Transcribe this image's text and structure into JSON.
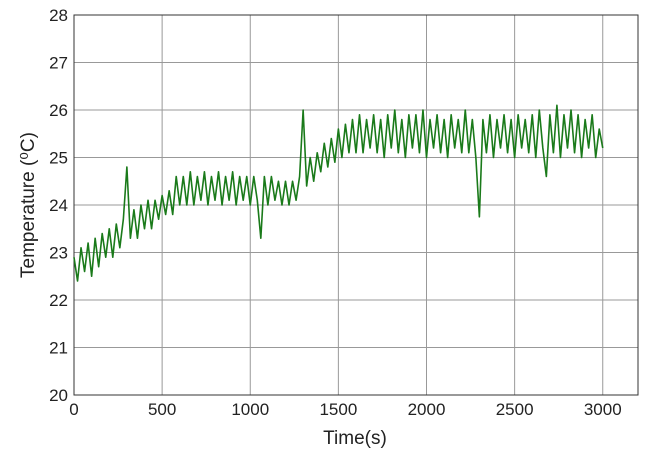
{
  "chart_data": {
    "type": "line",
    "xlabel": "Time(s)",
    "ylabel": "Temperature (⁰C)",
    "xlim": [
      0,
      3200
    ],
    "ylim": [
      20,
      28
    ],
    "xticks": [
      0,
      500,
      1000,
      1500,
      2000,
      2500,
      3000
    ],
    "yticks": [
      20,
      21,
      22,
      23,
      24,
      25,
      26,
      27,
      28
    ],
    "grid": true,
    "x": [
      0,
      20,
      40,
      60,
      80,
      100,
      120,
      140,
      160,
      180,
      200,
      220,
      240,
      260,
      280,
      300,
      320,
      340,
      360,
      380,
      400,
      420,
      440,
      460,
      480,
      500,
      520,
      540,
      560,
      580,
      600,
      620,
      640,
      660,
      680,
      700,
      720,
      740,
      760,
      780,
      800,
      820,
      840,
      860,
      880,
      900,
      920,
      940,
      960,
      980,
      1000,
      1020,
      1040,
      1060,
      1080,
      1100,
      1120,
      1140,
      1160,
      1180,
      1200,
      1220,
      1240,
      1260,
      1280,
      1300,
      1320,
      1340,
      1360,
      1380,
      1400,
      1420,
      1440,
      1460,
      1480,
      1500,
      1520,
      1540,
      1560,
      1580,
      1600,
      1620,
      1640,
      1660,
      1680,
      1700,
      1720,
      1740,
      1760,
      1780,
      1800,
      1820,
      1840,
      1860,
      1880,
      1900,
      1920,
      1940,
      1960,
      1980,
      2000,
      2020,
      2040,
      2060,
      2080,
      2100,
      2120,
      2140,
      2160,
      2180,
      2200,
      2220,
      2240,
      2260,
      2280,
      2300,
      2320,
      2340,
      2360,
      2380,
      2400,
      2420,
      2440,
      2460,
      2480,
      2500,
      2520,
      2540,
      2560,
      2580,
      2600,
      2620,
      2640,
      2660,
      2680,
      2700,
      2720,
      2740,
      2760,
      2780,
      2800,
      2820,
      2840,
      2860,
      2880,
      2900,
      2920,
      2940,
      2960,
      2980,
      3000
    ],
    "series": [
      {
        "name": "Temperature",
        "color": "#1a7a1a",
        "values": [
          22.9,
          22.4,
          23.1,
          22.6,
          23.2,
          22.5,
          23.3,
          22.7,
          23.4,
          22.9,
          23.5,
          22.9,
          23.6,
          23.1,
          23.7,
          24.8,
          23.3,
          23.9,
          23.3,
          24.0,
          23.5,
          24.1,
          23.5,
          24.1,
          23.7,
          24.2,
          23.8,
          24.3,
          23.8,
          24.6,
          24.0,
          24.6,
          24.0,
          24.7,
          24.0,
          24.6,
          24.1,
          24.7,
          24.0,
          24.6,
          24.1,
          24.7,
          24.0,
          24.6,
          24.1,
          24.7,
          24.0,
          24.6,
          24.1,
          24.6,
          24.0,
          24.6,
          24.1,
          23.3,
          24.6,
          24.0,
          24.6,
          24.1,
          24.5,
          24.0,
          24.5,
          24.0,
          24.5,
          24.1,
          24.6,
          26.0,
          24.4,
          25.0,
          24.5,
          25.1,
          24.7,
          25.3,
          24.8,
          25.4,
          24.9,
          25.6,
          25.0,
          25.7,
          25.1,
          25.8,
          25.1,
          25.9,
          25.1,
          25.8,
          25.2,
          25.9,
          25.1,
          25.8,
          25.0,
          25.9,
          25.2,
          26.0,
          25.1,
          25.8,
          25.0,
          25.9,
          25.2,
          25.9,
          25.1,
          26.0,
          25.0,
          25.8,
          25.2,
          25.9,
          25.1,
          25.8,
          25.0,
          25.9,
          25.2,
          25.8,
          25.1,
          26.0,
          25.1,
          25.8,
          25.0,
          23.75,
          25.8,
          25.1,
          25.9,
          25.0,
          25.8,
          25.2,
          25.9,
          25.1,
          25.8,
          25.0,
          25.9,
          25.2,
          25.8,
          25.1,
          25.9,
          25.0,
          26.0,
          25.2,
          24.6,
          25.9,
          25.1,
          26.1,
          25.0,
          25.9,
          25.2,
          26.0,
          25.1,
          25.9,
          25.0,
          25.8,
          25.2,
          25.9,
          25.0,
          25.6,
          25.2
        ]
      }
    ]
  }
}
